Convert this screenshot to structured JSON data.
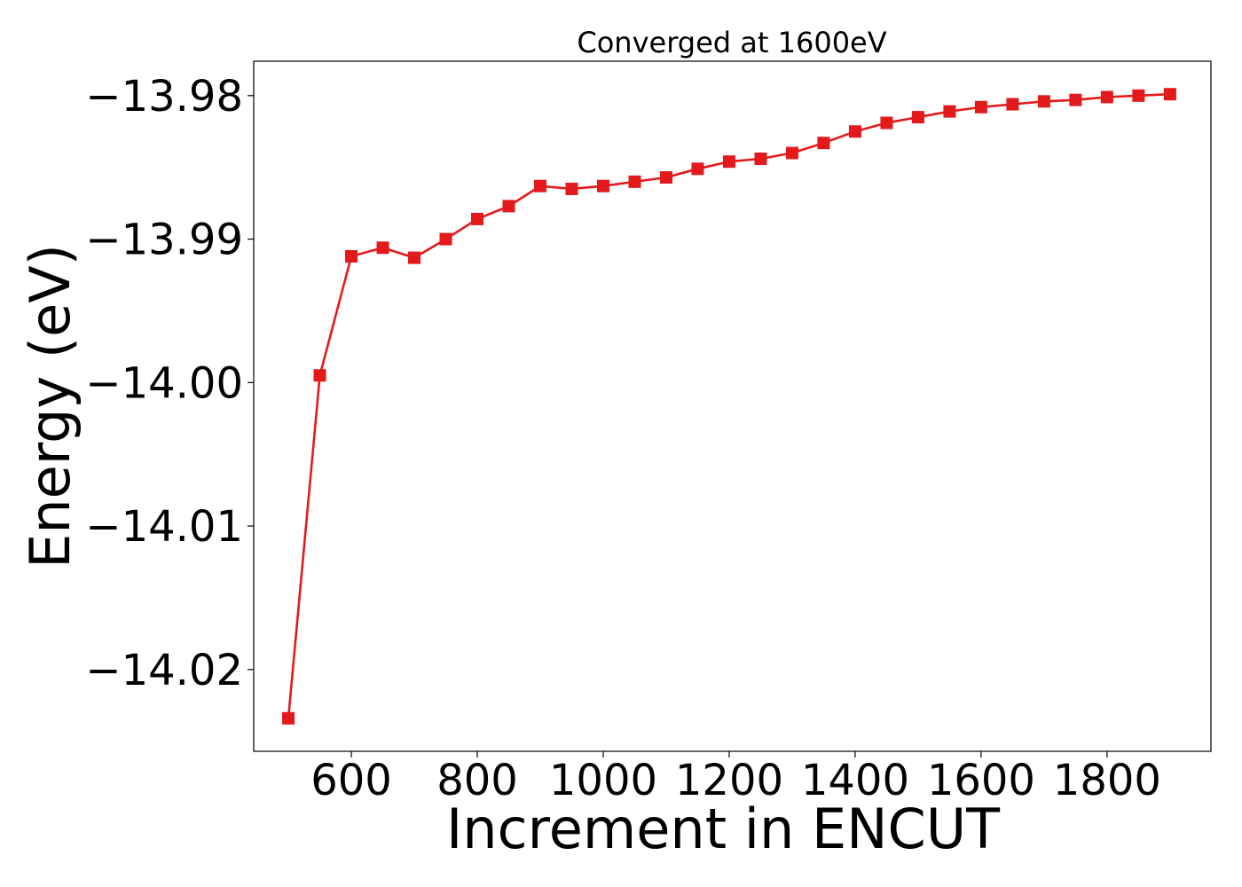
{
  "chart_data": {
    "type": "line",
    "title": "Converged at 1600eV",
    "xlabel": "Increment in ENCUT",
    "ylabel": "Energy (eV)",
    "xlim": [
      445,
      1965
    ],
    "ylim": [
      -14.0257,
      -13.9776
    ],
    "xticks": [
      600,
      800,
      1000,
      1200,
      1400,
      1600,
      1800
    ],
    "xtick_labels": [
      "600",
      "800",
      "1000",
      "1200",
      "1400",
      "1600",
      "1800"
    ],
    "yticks": [
      -13.98,
      -13.99,
      -14.0,
      -14.01,
      -14.02
    ],
    "ytick_labels": [
      "−13.98",
      "−13.99",
      "−14.00",
      "−14.01",
      "−14.02"
    ],
    "grid": false,
    "series": [
      {
        "color": "#e31a1c",
        "marker": "square",
        "x": [
          500,
          550,
          600,
          650,
          700,
          750,
          800,
          850,
          900,
          950,
          1000,
          1050,
          1100,
          1150,
          1200,
          1250,
          1300,
          1350,
          1400,
          1450,
          1500,
          1550,
          1600,
          1650,
          1700,
          1750,
          1800,
          1850,
          1900
        ],
        "y": [
          -14.0234,
          -13.9995,
          -13.9912,
          -13.9906,
          -13.9913,
          -13.99,
          -13.9886,
          -13.9877,
          -13.9863,
          -13.9865,
          -13.9863,
          -13.986,
          -13.9857,
          -13.9851,
          -13.9846,
          -13.9844,
          -13.984,
          -13.9833,
          -13.9825,
          -13.9819,
          -13.9815,
          -13.9811,
          -13.9808,
          -13.9806,
          -13.9804,
          -13.9803,
          -13.9801,
          -13.98,
          -13.9799
        ]
      }
    ]
  }
}
